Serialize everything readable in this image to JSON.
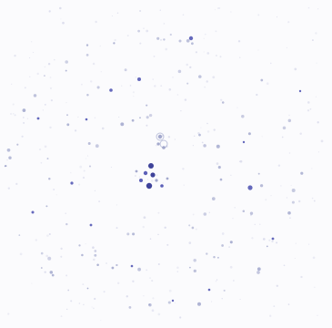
{
  "image": {
    "background": "#fbfbfd",
    "dot_colors": {
      "strong": "#2a2f8f",
      "medium": "#4a4fb0",
      "faint": "#9aa0c8",
      "haze": "#c9cbe3"
    },
    "subject": "diffraction-spot-pattern"
  }
}
